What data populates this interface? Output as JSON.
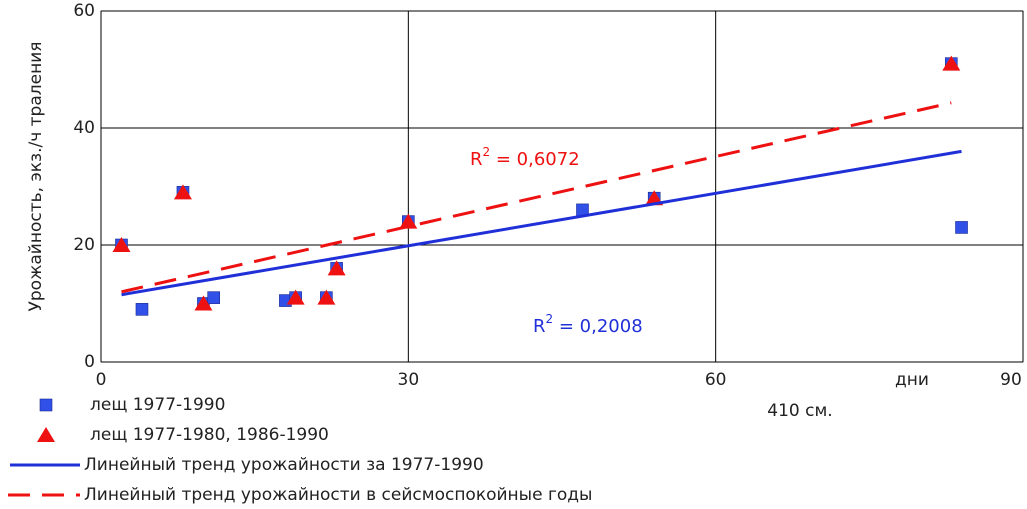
{
  "chart_data": {
    "type": "scatter",
    "y_label": "Урожайность, экз./ч траления",
    "x_label": "дни",
    "x_note": "410 см.",
    "xlim": [
      0,
      90
    ],
    "xticks": [
      0,
      30,
      60,
      90
    ],
    "ylim": [
      0,
      60
    ],
    "yticks": [
      0,
      20,
      40,
      60
    ],
    "grid": true,
    "series": [
      {
        "name": "лещ 1977-1990",
        "kind": "square",
        "color": "#3050e8",
        "x": [
          2,
          4,
          8,
          10,
          11,
          18,
          19,
          22,
          23,
          30,
          47,
          54,
          83,
          84
        ],
        "values": [
          20,
          9,
          29,
          10,
          11,
          10.5,
          11,
          11,
          16,
          24,
          26,
          28,
          51,
          23
        ]
      },
      {
        "name": "лещ 1977-1980, 1986-1990",
        "kind": "triangle",
        "color": "#ee1111",
        "x": [
          2,
          8,
          10,
          19,
          22,
          23,
          30,
          54,
          83
        ],
        "values": [
          20,
          29,
          10,
          11,
          11,
          16,
          24,
          28,
          51
        ]
      },
      {
        "name": "Линейный тренд урожайности за 1977-1990",
        "kind": "solid",
        "color": "#2030d8",
        "x": [
          2,
          84
        ],
        "values": [
          11.5,
          36
        ]
      },
      {
        "name": "Линейный тренд урожайности в сейсмоспокойные  годы",
        "kind": "dashed",
        "color": "#ee1111",
        "x": [
          2,
          83
        ],
        "values": [
          12,
          44.3
        ]
      }
    ],
    "annotations": [
      {
        "base": "R",
        "sup": "2",
        "rest": " = 0,6072",
        "color": "#ee1111"
      },
      {
        "base": "R",
        "sup": "2",
        "rest": " = 0,2008",
        "color": "#2030d8"
      }
    ]
  }
}
